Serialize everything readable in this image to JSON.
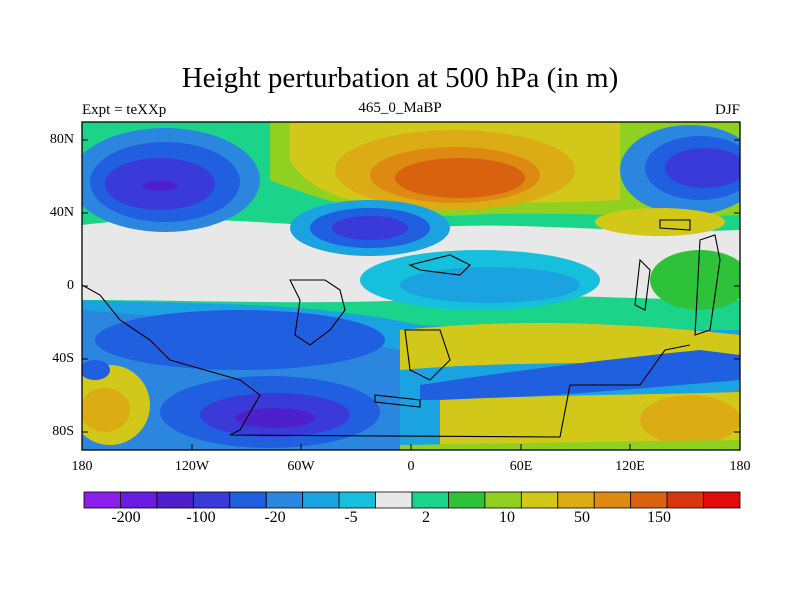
{
  "map": {
    "title": "Height perturbation at 500 hPa (in m)",
    "left_subtitle": "Expt = teXXp",
    "center_subtitle": "465_0_MaBP",
    "right_subtitle": "DJF",
    "lat_ticks": [
      "80N",
      "40N",
      "0",
      "40S",
      "80S"
    ],
    "lon_ticks": [
      "180",
      "120W",
      "60W",
      "0",
      "60E",
      "120E",
      "180"
    ]
  },
  "colorbar": {
    "tick_labels": [
      "-200",
      "-100",
      "-20",
      "-5",
      "2",
      "10",
      "50",
      "150"
    ],
    "colors": [
      "#8a1eea",
      "#6a1ce0",
      "#4e20cc",
      "#3a3ad8",
      "#1f5fe0",
      "#2b86e0",
      "#1aa3e0",
      "#16c0dc",
      "#e8e8e8",
      "#1cd38a",
      "#2ec23a",
      "#8fd020",
      "#d2c81a",
      "#dcac14",
      "#de8a12",
      "#d8620e",
      "#d8360e",
      "#e00b0b"
    ]
  }
}
